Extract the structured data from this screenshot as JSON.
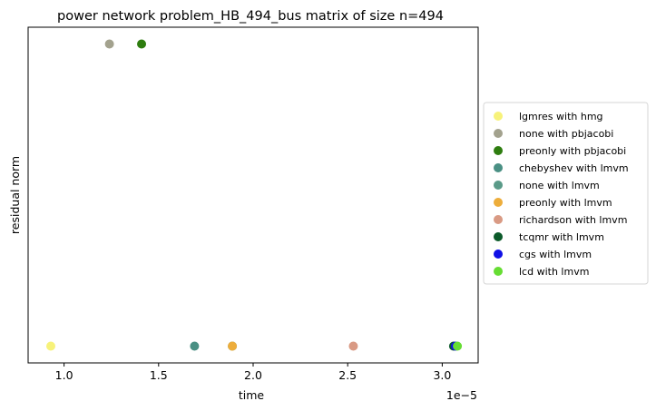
{
  "chart_data": {
    "type": "scatter",
    "title": "power network problem_HB_494_bus matrix of size n=494",
    "xlabel": "time",
    "ylabel": "residual norm",
    "x_scale_note": "1e−5",
    "xlim": [
      0.81,
      3.19
    ],
    "ylim": [
      0,
      1
    ],
    "x_ticks": [
      1.0,
      1.5,
      2.0,
      2.5,
      3.0
    ],
    "x_tick_labels": [
      "1.0",
      "1.5",
      "2.0",
      "2.5",
      "3.0"
    ],
    "y_ticks_shown": false,
    "grid": false,
    "legend_position": "right, outside plot",
    "series": [
      {
        "name": "lgmres with hmg",
        "color": "#f7f27a",
        "x": 0.93,
        "y": 0.05
      },
      {
        "name": "none with pbjacobi",
        "color": "#a3a28e",
        "x": 1.24,
        "y": 0.95
      },
      {
        "name": "preonly with pbjacobi",
        "color": "#2e7d0f",
        "x": 1.41,
        "y": 0.95
      },
      {
        "name": "chebyshev with lmvm",
        "color": "#4a9084",
        "x": 1.69,
        "y": 0.05
      },
      {
        "name": "none with lmvm",
        "color": "#5a9a88",
        "x": 1.89,
        "y": 0.05
      },
      {
        "name": "preonly with lmvm",
        "color": "#edad3b",
        "x": 1.89,
        "y": 0.05
      },
      {
        "name": "richardson with lmvm",
        "color": "#d99a84",
        "x": 2.53,
        "y": 0.05
      },
      {
        "name": "tcqmr with lmvm",
        "color": "#0c5a2a",
        "x": 3.06,
        "y": 0.05
      },
      {
        "name": "cgs with lmvm",
        "color": "#0f0fe6",
        "x": 3.07,
        "y": 0.05
      },
      {
        "name": "lcd with lmvm",
        "color": "#66dd33",
        "x": 3.08,
        "y": 0.05
      }
    ]
  }
}
